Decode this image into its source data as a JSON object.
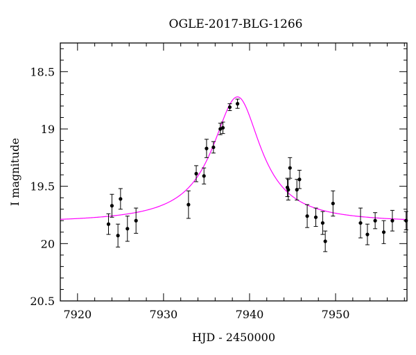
{
  "chart_data": {
    "type": "scatter",
    "title": "OGLE-2017-BLG-1266",
    "xlabel": "HJD - 2450000",
    "ylabel": "I magnitude",
    "xlim": [
      7918,
      7958.3
    ],
    "ylim": [
      20.5,
      18.25
    ],
    "y_inverted": true,
    "xticks": [
      7920,
      7930,
      7940,
      7950
    ],
    "xtick_labels": [
      "7920",
      "7930",
      "7940",
      "7950"
    ],
    "yticks": [
      18.5,
      19,
      19.5,
      20,
      20.5
    ],
    "ytick_labels": [
      "18.5",
      "19",
      "19.5",
      "20",
      "20.5"
    ],
    "grid": false,
    "model_color": "#ff00ff",
    "point_color": "#000000",
    "model": {
      "baseline": 19.82,
      "amplitude": 1.1,
      "t0": 7938.6,
      "left_width": 3.55,
      "right_width": 3.3
    },
    "series": [
      {
        "points": [
          {
            "x": 7923.6,
            "y": 19.83,
            "err": 0.09
          },
          {
            "x": 7924.0,
            "y": 19.67,
            "err": 0.1
          },
          {
            "x": 7924.7,
            "y": 19.93,
            "err": 0.1
          },
          {
            "x": 7925.0,
            "y": 19.61,
            "err": 0.09
          },
          {
            "x": 7925.8,
            "y": 19.87,
            "err": 0.11
          },
          {
            "x": 7926.8,
            "y": 19.8,
            "err": 0.11
          },
          {
            "x": 7932.9,
            "y": 19.66,
            "err": 0.12
          },
          {
            "x": 7933.8,
            "y": 19.39,
            "err": 0.07
          },
          {
            "x": 7934.7,
            "y": 19.41,
            "err": 0.07
          },
          {
            "x": 7935.0,
            "y": 19.17,
            "err": 0.08
          },
          {
            "x": 7935.8,
            "y": 19.16,
            "err": 0.05
          },
          {
            "x": 7936.6,
            "y": 19.0,
            "err": 0.05
          },
          {
            "x": 7936.9,
            "y": 18.99,
            "err": 0.05
          },
          {
            "x": 7937.7,
            "y": 18.81,
            "err": 0.03
          },
          {
            "x": 7938.6,
            "y": 18.78,
            "err": 0.04
          },
          {
            "x": 7944.4,
            "y": 19.51,
            "err": 0.08
          },
          {
            "x": 7944.5,
            "y": 19.53,
            "err": 0.09
          },
          {
            "x": 7944.7,
            "y": 19.34,
            "err": 0.09
          },
          {
            "x": 7945.5,
            "y": 19.53,
            "err": 0.09
          },
          {
            "x": 7945.8,
            "y": 19.44,
            "err": 0.08
          },
          {
            "x": 7946.7,
            "y": 19.76,
            "err": 0.1
          },
          {
            "x": 7947.7,
            "y": 19.77,
            "err": 0.08
          },
          {
            "x": 7948.5,
            "y": 19.82,
            "err": 0.1
          },
          {
            "x": 7948.8,
            "y": 19.98,
            "err": 0.09
          },
          {
            "x": 7949.7,
            "y": 19.65,
            "err": 0.11
          },
          {
            "x": 7952.9,
            "y": 19.82,
            "err": 0.13
          },
          {
            "x": 7953.7,
            "y": 19.92,
            "err": 0.09
          },
          {
            "x": 7954.6,
            "y": 19.8,
            "err": 0.07
          },
          {
            "x": 7955.6,
            "y": 19.9,
            "err": 0.1
          },
          {
            "x": 7956.6,
            "y": 19.8,
            "err": 0.09
          },
          {
            "x": 7958.2,
            "y": 19.8,
            "err": 0.08
          }
        ]
      }
    ]
  }
}
